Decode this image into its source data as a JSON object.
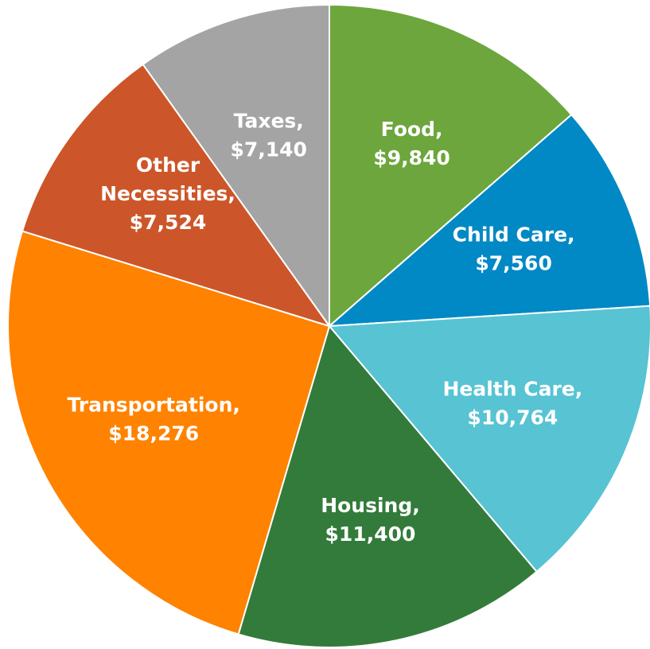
{
  "chart_data": {
    "type": "pie",
    "categories": [
      "Food,",
      "Child Care,",
      "Health Care,",
      "Housing,",
      "Transportation,",
      "Other Necessities,",
      "Taxes,"
    ],
    "values": [
      9840,
      7560,
      10764,
      11400,
      18276,
      7524,
      7140
    ],
    "value_labels": [
      "$9,840",
      "$7,560",
      "$10,764",
      "$11,400",
      "$18,276",
      "$7,524",
      "$7,140"
    ],
    "colors": [
      "#6ca63c",
      "#0089c4",
      "#57c3d3",
      "#337b3b",
      "#ff8200",
      "#cc5629",
      "#a4a4a4"
    ]
  }
}
